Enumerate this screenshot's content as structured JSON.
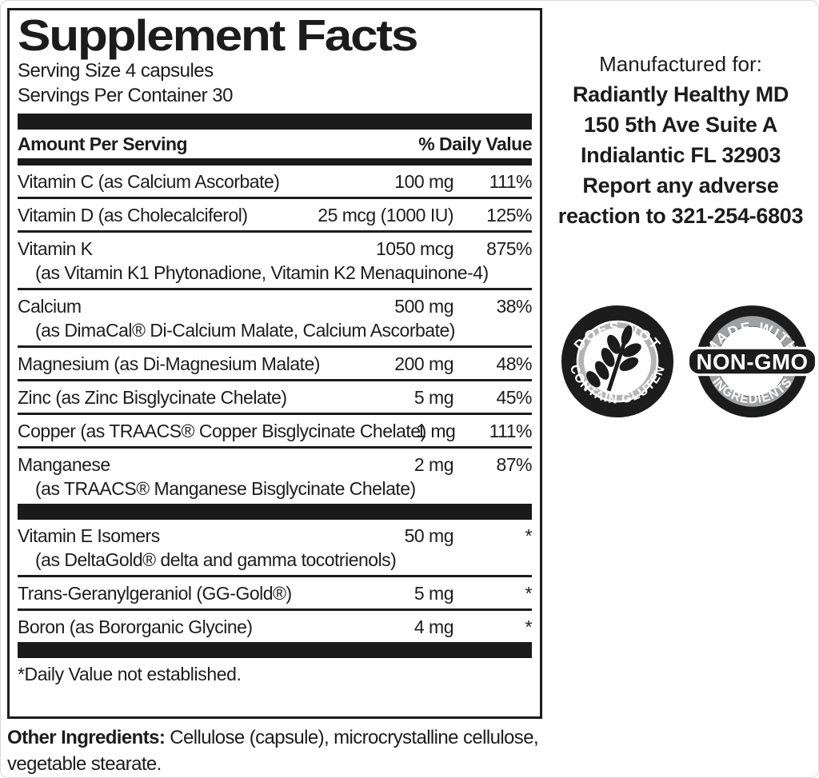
{
  "panel": {
    "title": "Supplement Facts",
    "serving_size": "Serving Size 4 capsules",
    "servings_per_container": "Servings Per Container 30",
    "header": {
      "amount": "Amount Per Serving",
      "daily_value": "% Daily Value"
    },
    "rows_main": [
      {
        "name": "Vitamin C (as Calcium Ascorbate)",
        "amount": "100 mg",
        "dv": "111%"
      },
      {
        "name": "Vitamin D (as Cholecalciferol)",
        "amount": "25 mcg (1000 IU)",
        "dv": "125%"
      },
      {
        "name": "Vitamin K",
        "sub": "(as Vitamin K1 Phytonadione, Vitamin K2 Menaquinone-4)",
        "amount": "1050 mcg",
        "dv": "875%"
      },
      {
        "name": "Calcium",
        "sub": "(as DimaCal® Di-Calcium Malate, Calcium Ascorbate)",
        "amount": "500 mg",
        "dv": "38%"
      },
      {
        "name": "Magnesium (as Di-Magnesium Malate)",
        "amount": "200 mg",
        "dv": "48%"
      },
      {
        "name": "Zinc (as Zinc Bisglycinate Chelate)",
        "amount": "5 mg",
        "dv": "45%"
      },
      {
        "name": "Copper (as TRAACS® Copper Bisglycinate Chelate)",
        "amount": "1 mg",
        "dv": "111%"
      },
      {
        "name": "Manganese",
        "sub": "(as TRAACS® Manganese Bisglycinate Chelate)",
        "amount": "2 mg",
        "dv": "87%"
      }
    ],
    "rows_secondary": [
      {
        "name": "Vitamin E Isomers",
        "sub": "(as DeltaGold® delta and gamma tocotrienols)",
        "amount": "50 mg",
        "dv": "*"
      },
      {
        "name": "Trans-Geranylgeraniol (GG-Gold®)",
        "amount": "5 mg",
        "dv": "*"
      },
      {
        "name": "Boron (as Bororganic Glycine)",
        "amount": "4 mg",
        "dv": "*"
      }
    ],
    "footnote": "*Daily Value not established.",
    "other_ingredients_label": "Other Ingredients:",
    "other_ingredients_text": " Cellulose (capsule), microcrystalline cellulose, vegetable stearate."
  },
  "manufacturer": {
    "intro": "Manufactured for:",
    "lines": [
      "Radiantly Healthy MD",
      "150 5th Ave Suite A",
      "Indialantic FL 32903",
      "Report any adverse",
      "reaction to 321-254-6803"
    ]
  },
  "badges": {
    "gluten_free": {
      "top": "DOES NOT",
      "bottom": "CONTAIN GLUTEN"
    },
    "non_gmo": {
      "top": "MADE WITH",
      "center": "NON-GMO",
      "bottom": "INGREDIENTS"
    }
  },
  "colors": {
    "ink": "#1c1c1c",
    "gluten_ring_gray": "#b4b4b6",
    "nongmo_ring_gray": "#9fa0a2"
  }
}
